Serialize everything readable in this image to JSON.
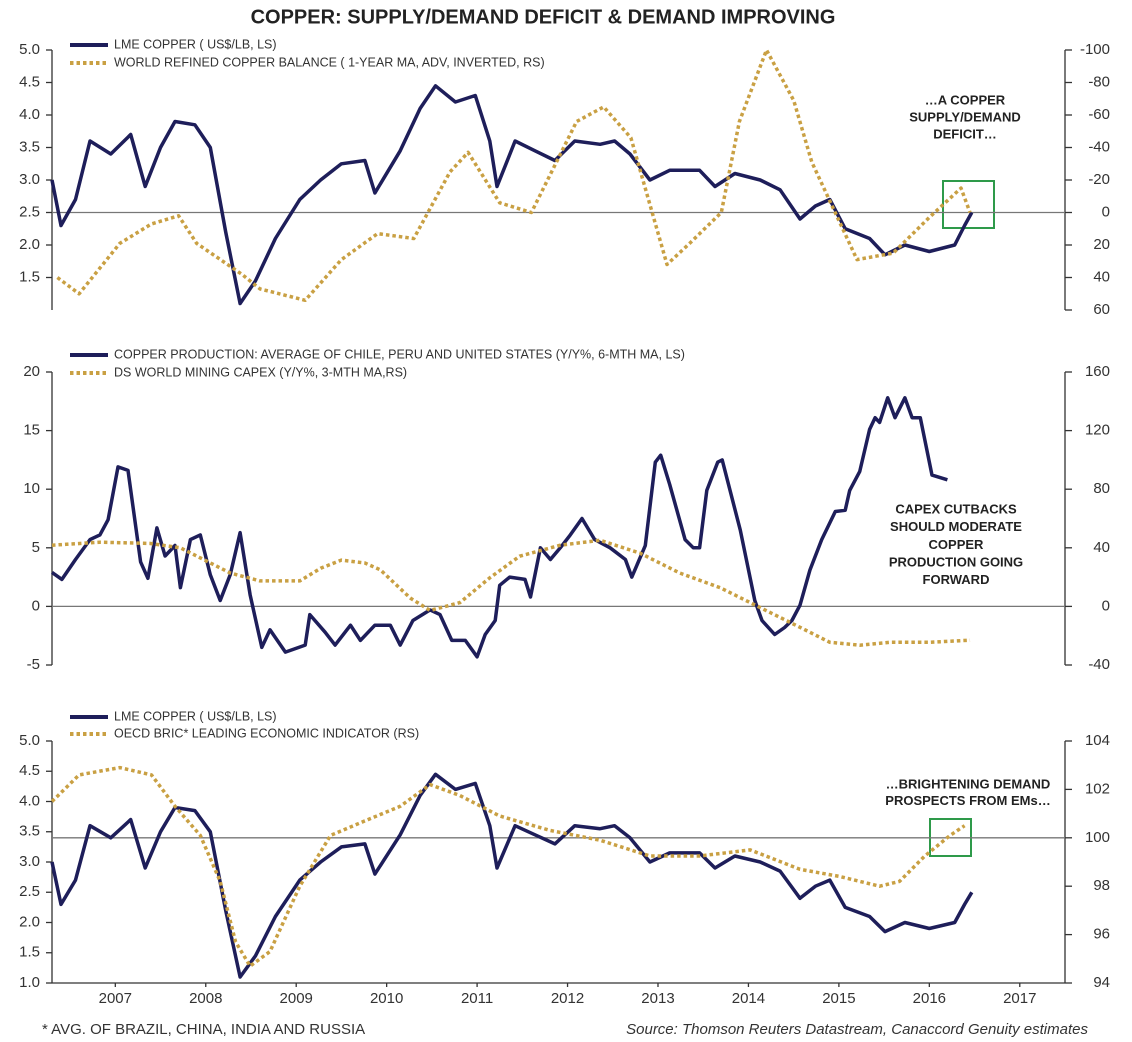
{
  "title": "COPPER: SUPPLY/DEMAND DEFICIT & DEMAND IMPROVING",
  "footnote": "* AVG. OF BRAZIL, CHINA, INDIA AND RUSSIA",
  "source": "Source: Thomson Reuters Datastream, Canaccord Genuity estimates",
  "chart_data": [
    {
      "type": "line",
      "xlim": [
        2006.8,
        2018
      ],
      "ylim": [
        1,
        5
      ],
      "yticks": [
        {
          "value": 1.5,
          "label": "1.5"
        },
        {
          "value": 2,
          "label": "2.0"
        },
        {
          "value": 2.5,
          "label": "2.5"
        },
        {
          "value": 3,
          "label": "3.0"
        },
        {
          "value": 3.5,
          "label": "3.5"
        },
        {
          "value": 4,
          "label": "4.0"
        },
        {
          "value": 4.5,
          "label": "4.5"
        },
        {
          "value": 5,
          "label": "5.0"
        }
      ],
      "y2lim": [
        60,
        -100
      ],
      "y2ticks": [
        60,
        40,
        20,
        0,
        -20,
        -40,
        -60,
        -80,
        -100
      ],
      "hline": 0,
      "hline_axis": "y2",
      "annotation": [
        "…A COPPER",
        "SUPPLY/DEMAND",
        "DEFICIT…"
      ],
      "series": [
        {
          "name": "LME COPPER ( US$/LB, LS)",
          "color": "#1e1e5a",
          "style": "solid",
          "x": [
            2006.8,
            2006.9,
            2007.06,
            2007.22,
            2007.45,
            2007.67,
            2007.83,
            2008.0,
            2008.16,
            2008.38,
            2008.55,
            2008.72,
            2008.88,
            2009.05,
            2009.27,
            2009.54,
            2009.77,
            2010.0,
            2010.26,
            2010.37,
            2010.65,
            2010.87,
            2011.04,
            2011.26,
            2011.48,
            2011.64,
            2011.72,
            2011.92,
            2012.14,
            2012.36,
            2012.58,
            2012.86,
            2013.02,
            2013.19,
            2013.41,
            2013.63,
            2013.96,
            2014.13,
            2014.35,
            2014.63,
            2014.85,
            2015.07,
            2015.24,
            2015.4,
            2015.57,
            2015.84,
            2016.01,
            2016.23,
            2016.5,
            2016.78,
            2016.89,
            2016.97
          ],
          "values": [
            3.0,
            2.3,
            2.7,
            3.6,
            3.4,
            3.7,
            2.9,
            3.5,
            3.9,
            3.85,
            3.5,
            2.2,
            1.1,
            1.45,
            2.1,
            2.7,
            3.0,
            3.25,
            3.3,
            2.8,
            3.45,
            4.1,
            4.45,
            4.2,
            4.3,
            3.6,
            2.9,
            3.6,
            3.45,
            3.3,
            3.6,
            3.55,
            3.6,
            3.4,
            3.0,
            3.15,
            3.15,
            2.9,
            3.1,
            3.0,
            2.85,
            2.4,
            2.6,
            2.7,
            2.25,
            2.1,
            1.85,
            2.0,
            1.9,
            2.0,
            2.3,
            2.5
          ]
        },
        {
          "name": "WORLD REFINED COPPER BALANCE ( 1-YEAR MA, ADV, INVERTED, RS)",
          "color": "#c9a043",
          "style": "dotted",
          "axis": "y2",
          "x": [
            2006.86,
            2007.1,
            2007.55,
            2007.9,
            2008.2,
            2008.4,
            2008.9,
            2009.1,
            2009.6,
            2010.0,
            2010.4,
            2010.8,
            2011.2,
            2011.4,
            2011.75,
            2012.1,
            2012.6,
            2012.9,
            2013.2,
            2013.6,
            2013.85,
            2014.2,
            2014.4,
            2014.7,
            2015.0,
            2015.2,
            2015.7,
            2016.1,
            2016.5,
            2016.85,
            2016.95
          ],
          "values": [
            40,
            50,
            19,
            7,
            2,
            19,
            38,
            47,
            54,
            29,
            13,
            16,
            -25,
            -37,
            -6,
            0,
            -56,
            -65,
            -46,
            32,
            19,
            0,
            -56,
            -100,
            -69,
            -31,
            29,
            25,
            3,
            -15,
            0
          ]
        }
      ]
    },
    {
      "type": "line",
      "xlim": [
        2006.8,
        2018
      ],
      "ylim": [
        -5,
        20
      ],
      "yticks": [
        -5,
        0,
        5,
        10,
        15,
        20
      ],
      "y2lim": [
        -40,
        160
      ],
      "y2ticks": [
        -40,
        0,
        40,
        80,
        120,
        160
      ],
      "hline": 0,
      "hline_axis": "y",
      "annotation": [
        "CAPEX CUTBACKS",
        "SHOULD MODERATE",
        "COPPER",
        "PRODUCTION GOING",
        "FORWARD"
      ],
      "series": [
        {
          "name": "COPPER PRODUCTION: AVERAGE OF CHILE, PERU AND UNITED STATES (Y/Y%, 6-MTH MA, LS)",
          "color": "#1e1e5a",
          "style": "solid",
          "x": [
            2006.8,
            2006.91,
            2007.06,
            2007.22,
            2007.33,
            2007.42,
            2007.53,
            2007.64,
            2007.78,
            2007.86,
            2007.96,
            2008.05,
            2008.16,
            2008.22,
            2008.33,
            2008.44,
            2008.55,
            2008.66,
            2008.77,
            2008.88,
            2008.99,
            2009.12,
            2009.21,
            2009.38,
            2009.6,
            2009.65,
            2009.82,
            2009.93,
            2010.1,
            2010.21,
            2010.37,
            2010.54,
            2010.65,
            2010.79,
            2010.98,
            2011.09,
            2011.22,
            2011.37,
            2011.5,
            2011.59,
            2011.7,
            2011.75,
            2011.86,
            2012.03,
            2012.09,
            2012.2,
            2012.31,
            2012.42,
            2012.53,
            2012.66,
            2012.8,
            2012.97,
            2013.14,
            2013.21,
            2013.36,
            2013.47,
            2013.53,
            2013.63,
            2013.8,
            2013.89,
            2013.96,
            2014.04,
            2014.16,
            2014.21,
            2014.41,
            2014.57,
            2014.65,
            2014.79,
            2014.9,
            2014.98,
            2015.07,
            2015.18,
            2015.31,
            2015.46,
            2015.57,
            2015.62,
            2015.73,
            2015.84,
            2015.9,
            2015.95,
            2016.04,
            2016.12,
            2016.23,
            2016.31,
            2016.4,
            2016.53,
            2016.7
          ],
          "values": [
            2.9,
            2.3,
            4.0,
            5.7,
            6.1,
            7.4,
            11.9,
            11.6,
            3.8,
            2.4,
            6.7,
            4.3,
            5.2,
            1.6,
            5.7,
            6.1,
            2.7,
            0.5,
            2.7,
            6.3,
            1.0,
            -3.5,
            -2.0,
            -3.9,
            -3.3,
            -0.7,
            -2.2,
            -3.3,
            -1.6,
            -2.9,
            -1.6,
            -1.6,
            -3.3,
            -1.2,
            -0.3,
            -0.7,
            -2.9,
            -2.9,
            -4.3,
            -2.4,
            -1.2,
            1.8,
            2.5,
            2.3,
            0.8,
            5.0,
            4.0,
            5.0,
            6.1,
            7.5,
            5.7,
            5.0,
            4.0,
            2.5,
            5.2,
            12.3,
            12.9,
            10.4,
            5.7,
            5.0,
            5.0,
            9.9,
            12.3,
            12.5,
            6.5,
            0.5,
            -1.2,
            -2.4,
            -1.8,
            -1.2,
            0.1,
            3.1,
            5.7,
            8.1,
            8.2,
            9.9,
            11.5,
            15.1,
            16.1,
            15.7,
            17.8,
            16.1,
            17.8,
            16.1,
            16.1,
            11.2,
            10.8
          ]
        },
        {
          "name": "DS WORLD MINING CAPEX (Y/Y%, 3-MTH MA,RS)",
          "color": "#c9a043",
          "style": "dotted",
          "axis": "y2",
          "x": [
            2006.8,
            2007.33,
            2007.88,
            2008.22,
            2008.77,
            2009.1,
            2009.54,
            2009.77,
            2010.0,
            2010.26,
            2010.43,
            2010.76,
            2010.98,
            2011.31,
            2011.64,
            2011.97,
            2012.42,
            2012.86,
            2013.3,
            2013.74,
            2014.19,
            2014.63,
            2015.07,
            2015.4,
            2015.73,
            2016.06,
            2016.5,
            2016.95
          ],
          "values": [
            41.8,
            43.8,
            43,
            40,
            22.8,
            17.4,
            17.4,
            26,
            31.6,
            29.6,
            25,
            5.7,
            -2.8,
            2.6,
            19.5,
            34.3,
            41.8,
            45.1,
            36.4,
            22.8,
            12.7,
            -0.8,
            -14.3,
            -24.5,
            -26.5,
            -24.5,
            -24.5,
            -23.1
          ]
        }
      ]
    },
    {
      "type": "line",
      "xlim": [
        2006.8,
        2018
      ],
      "xticks": [
        {
          "value": 2007.5,
          "label": "2007"
        },
        {
          "value": 2008.5,
          "label": "2008"
        },
        {
          "value": 2009.5,
          "label": "2009"
        },
        {
          "value": 2010.5,
          "label": "2010"
        },
        {
          "value": 2011.5,
          "label": "2011"
        },
        {
          "value": 2012.5,
          "label": "2012"
        },
        {
          "value": 2013.5,
          "label": "2013"
        },
        {
          "value": 2014.5,
          "label": "2014"
        },
        {
          "value": 2015.5,
          "label": "2015"
        },
        {
          "value": 2016.5,
          "label": "2016"
        },
        {
          "value": 2017.5,
          "label": "2017"
        }
      ],
      "ylim": [
        1,
        5
      ],
      "yticks": [
        {
          "value": 1,
          "label": "1.0"
        },
        {
          "value": 1.5,
          "label": "1.5"
        },
        {
          "value": 2,
          "label": "2.0"
        },
        {
          "value": 2.5,
          "label": "2.5"
        },
        {
          "value": 3,
          "label": "3.0"
        },
        {
          "value": 3.5,
          "label": "3.5"
        },
        {
          "value": 4,
          "label": "4.0"
        },
        {
          "value": 4.5,
          "label": "4.5"
        },
        {
          "value": 5,
          "label": "5.0"
        }
      ],
      "y2lim": [
        94,
        104
      ],
      "y2ticks": [
        94,
        96,
        98,
        100,
        102,
        104
      ],
      "hline": 100,
      "hline_axis": "y2",
      "annotation": [
        "…BRIGHTENING DEMAND",
        "PROSPECTS FROM EMs…"
      ],
      "series": [
        {
          "name": "LME COPPER ( US$/LB, LS)",
          "color": "#1e1e5a",
          "style": "solid",
          "x": [
            2006.8,
            2006.9,
            2007.06,
            2007.22,
            2007.45,
            2007.67,
            2007.83,
            2008.0,
            2008.16,
            2008.38,
            2008.55,
            2008.72,
            2008.88,
            2009.05,
            2009.27,
            2009.54,
            2009.77,
            2010.0,
            2010.26,
            2010.37,
            2010.65,
            2010.87,
            2011.04,
            2011.26,
            2011.48,
            2011.64,
            2011.72,
            2011.92,
            2012.14,
            2012.36,
            2012.58,
            2012.86,
            2013.02,
            2013.19,
            2013.41,
            2013.63,
            2013.96,
            2014.13,
            2014.35,
            2014.63,
            2014.85,
            2015.07,
            2015.24,
            2015.4,
            2015.57,
            2015.84,
            2016.01,
            2016.23,
            2016.5,
            2016.78,
            2016.89,
            2016.97
          ],
          "values": [
            3.0,
            2.3,
            2.7,
            3.6,
            3.4,
            3.7,
            2.9,
            3.5,
            3.9,
            3.85,
            3.5,
            2.2,
            1.1,
            1.45,
            2.1,
            2.7,
            3.0,
            3.25,
            3.3,
            2.8,
            3.45,
            4.1,
            4.45,
            4.2,
            4.3,
            3.6,
            2.9,
            3.6,
            3.45,
            3.3,
            3.6,
            3.55,
            3.6,
            3.4,
            3.0,
            3.15,
            3.15,
            2.9,
            3.1,
            3.0,
            2.85,
            2.4,
            2.6,
            2.7,
            2.25,
            2.1,
            1.85,
            2.0,
            1.9,
            2.0,
            2.3,
            2.5
          ]
        },
        {
          "name": "OECD BRIC* LEADING ECONOMIC INDICATOR (RS)",
          "color": "#c9a043",
          "style": "dotted",
          "axis": "y2",
          "x": [
            2006.8,
            2007.1,
            2007.55,
            2007.9,
            2008.16,
            2008.44,
            2008.66,
            2008.83,
            2008.99,
            2009.21,
            2009.54,
            2009.88,
            2010.26,
            2010.65,
            2010.98,
            2011.31,
            2011.75,
            2012.31,
            2012.86,
            2013.41,
            2013.96,
            2014.52,
            2015.07,
            2015.51,
            2015.95,
            2016.17,
            2016.45,
            2016.73,
            2016.89
          ],
          "values": [
            101.5,
            102.6,
            102.9,
            102.6,
            101.3,
            100.1,
            98.2,
            95.7,
            94.7,
            95.3,
            98.0,
            100.1,
            100.7,
            101.3,
            102.2,
            101.75,
            100.9,
            100.3,
            99.9,
            99.25,
            99.25,
            99.5,
            98.7,
            98.4,
            98.0,
            98.2,
            99.25,
            100.1,
            100.5
          ]
        }
      ]
    }
  ]
}
